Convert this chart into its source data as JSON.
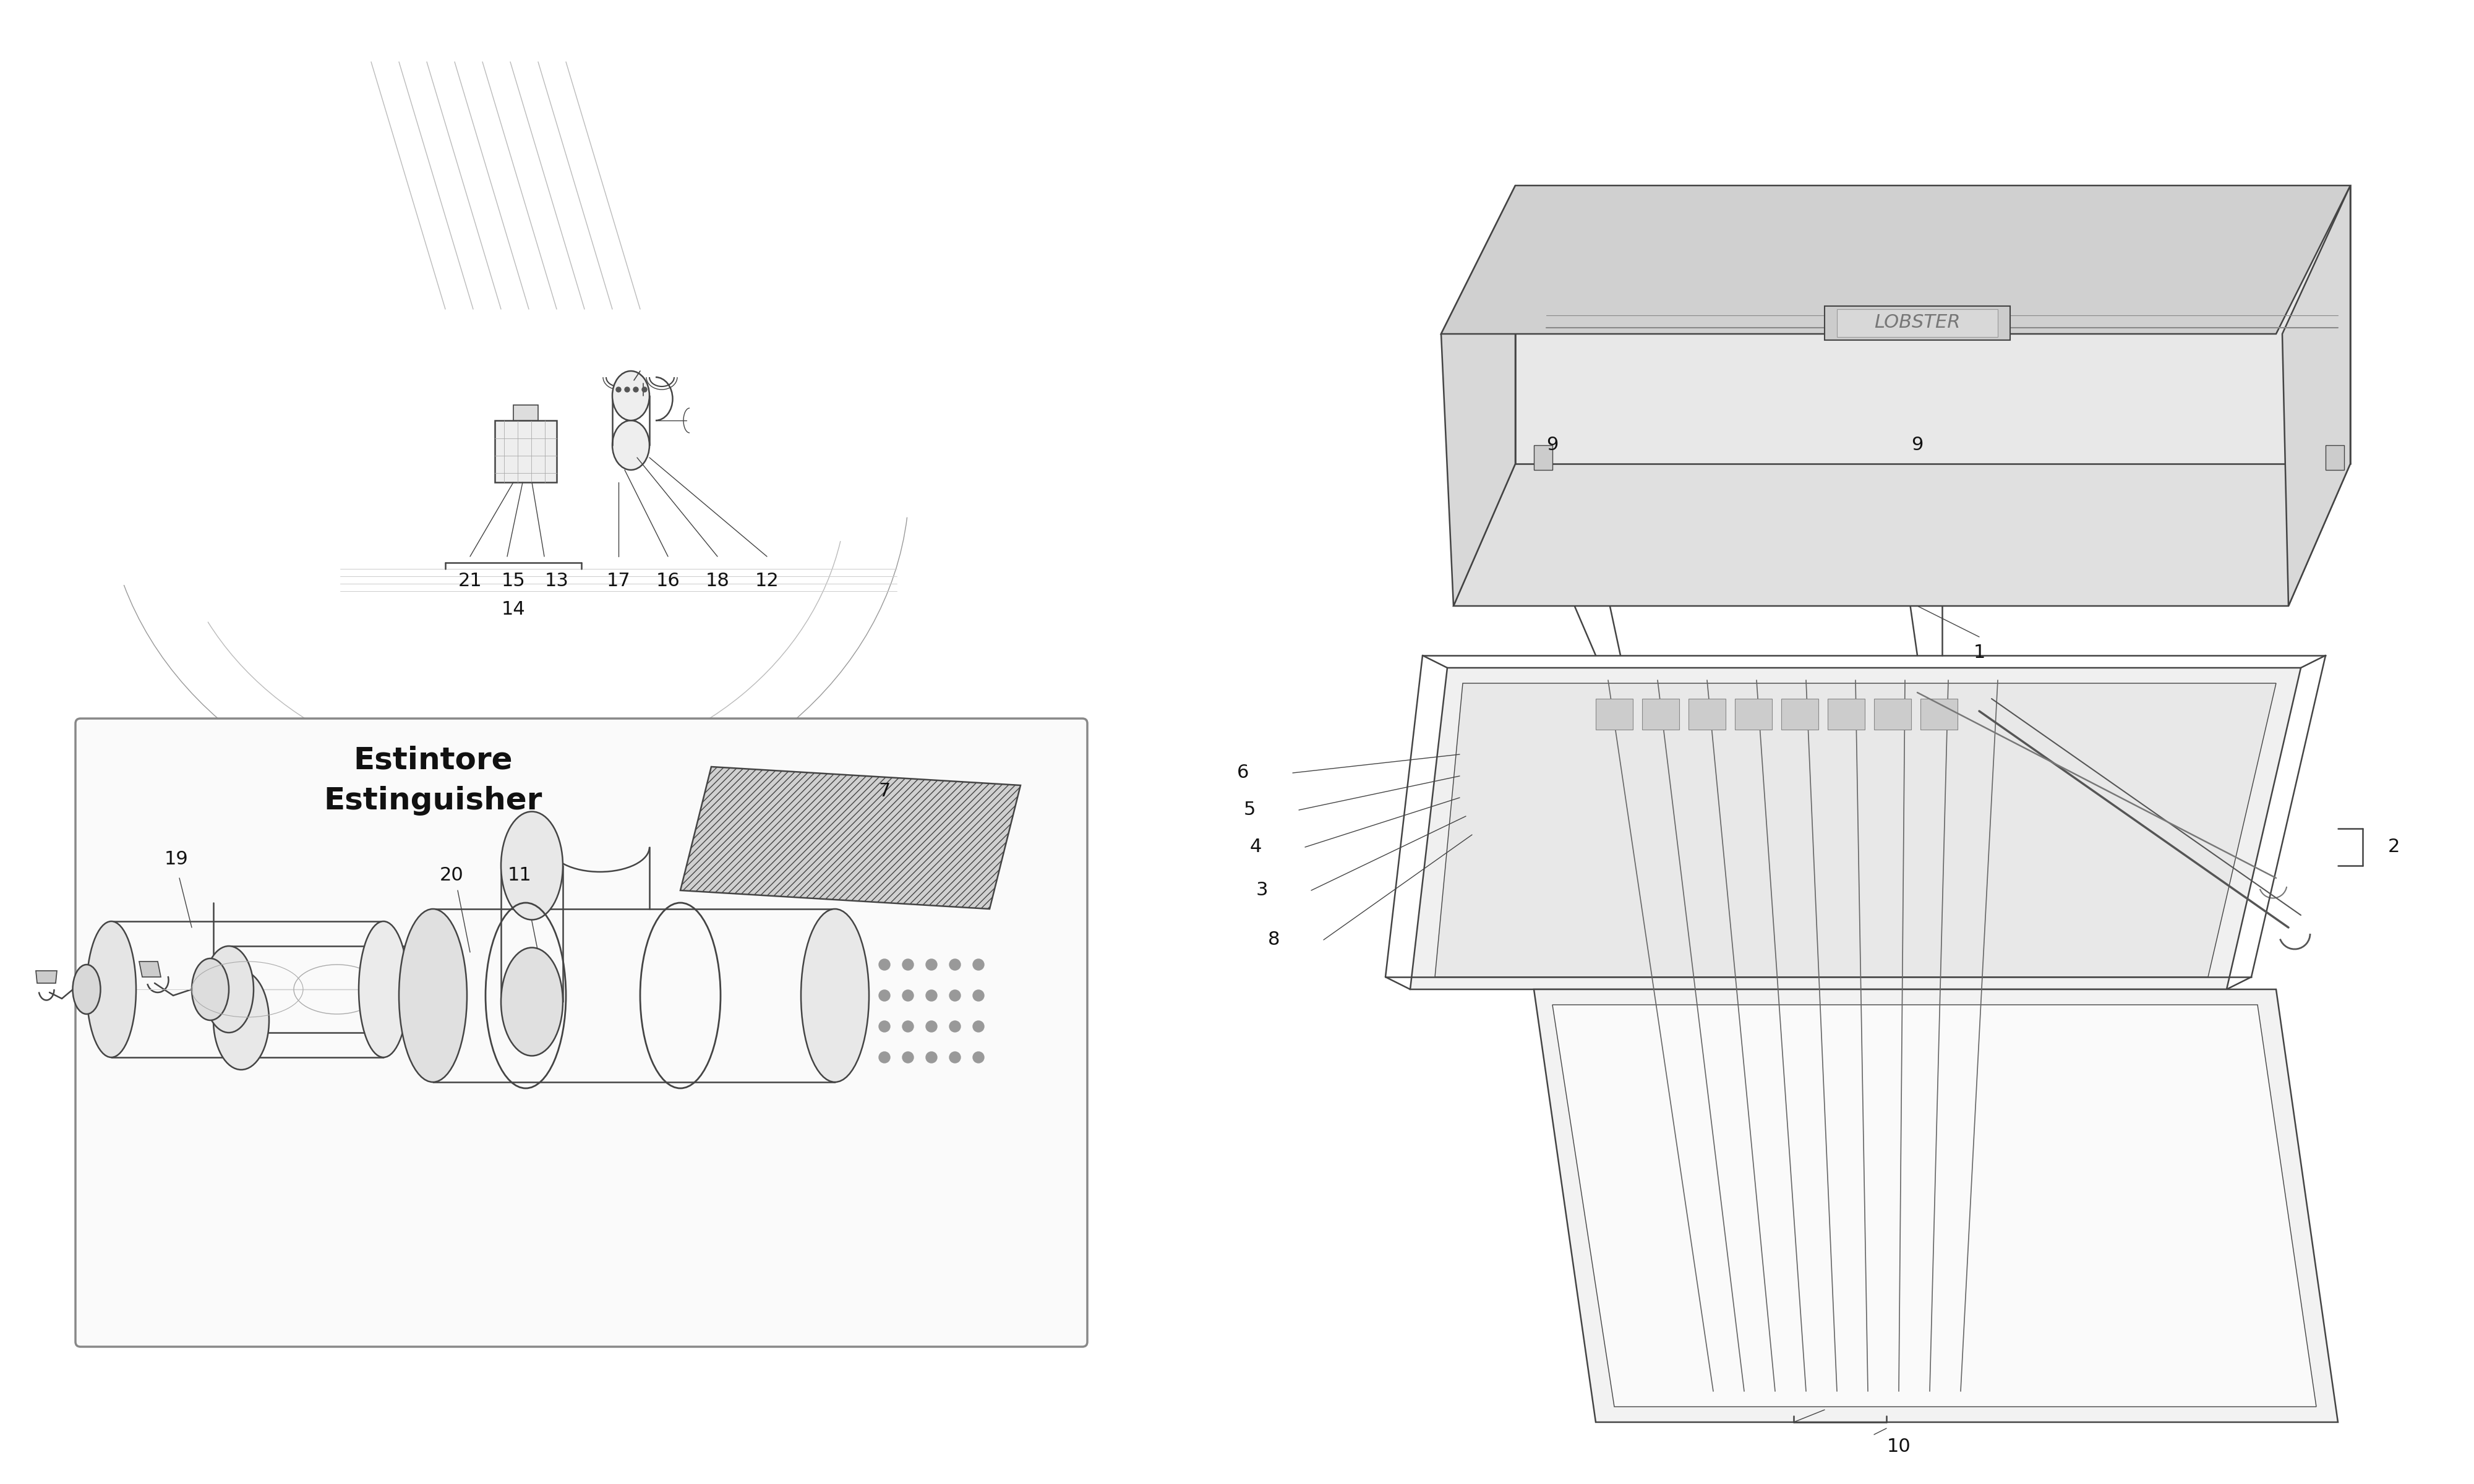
{
  "bg": "#ffffff",
  "lc": "#444444",
  "tc": "#111111",
  "lc_light": "#888888",
  "fs_label": 22,
  "fs_caption": 28,
  "lw": 1.8,
  "lw_thin": 1.0,
  "extinguisher_label_1": "Estintore",
  "extinguisher_label_2": "Estinguisher",
  "positions_bottom": [
    [
      0.213,
      0.0,
      "21"
    ],
    [
      0.285,
      0.0,
      "15"
    ],
    [
      0.343,
      0.0,
      "13"
    ],
    [
      0.463,
      0.0,
      "17"
    ],
    [
      0.553,
      0.0,
      "16"
    ],
    [
      0.643,
      0.0,
      "18"
    ],
    [
      0.733,
      0.0,
      "12"
    ]
  ]
}
